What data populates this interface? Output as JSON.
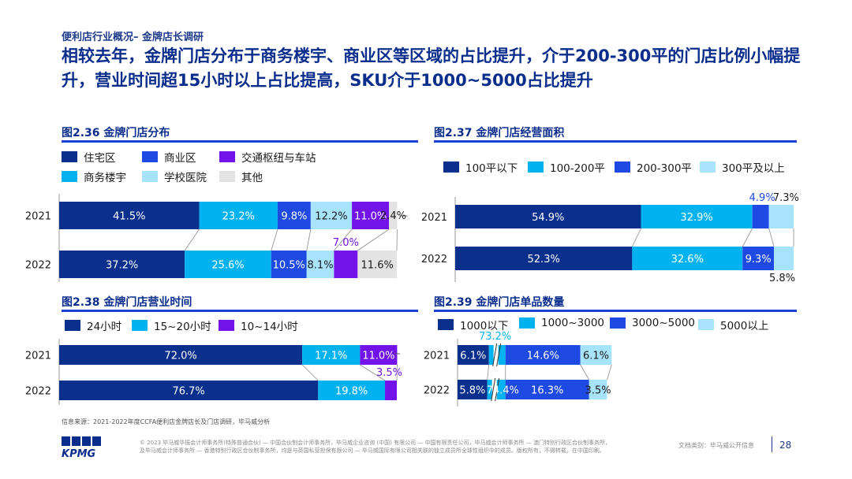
{
  "header": {
    "breadcrumb": "便利店行业概况– 金牌店长调研",
    "title": "相较去年，金牌门店分布于商务楼宇、商业区等区域的占比提升，介于200-300平的门店比例小幅提升，营业时间超15小时以上占比提高，SKU介于1000~5000占比提升"
  },
  "colors": {
    "navy": "#0a2f8c",
    "blue": "#1e49e2",
    "purple": "#7213ea",
    "cyan": "#00b3f0",
    "lightcyan": "#a7e3fa",
    "gray": "#e3e3e3"
  },
  "chart_data": [
    {
      "type": "bar",
      "stacked": true,
      "orientation": "horizontal",
      "title": "图2.36 金牌门店分布",
      "categories": [
        "2021",
        "2022"
      ],
      "series": [
        {
          "name": "住宅区",
          "values": [
            41.5,
            37.2
          ],
          "color": "#0a2f8c"
        },
        {
          "name": "商务楼宇",
          "values": [
            23.2,
            25.6
          ],
          "color": "#00b3f0"
        },
        {
          "name": "商业区",
          "values": [
            9.8,
            10.5
          ],
          "color": "#1e49e2"
        },
        {
          "name": "学校医院",
          "values": [
            12.2,
            8.1
          ],
          "color": "#a7e3fa"
        },
        {
          "name": "交通枢纽与车站",
          "values": [
            11.0,
            7.0
          ],
          "color": "#7213ea"
        },
        {
          "name": "其他",
          "values": [
            2.4,
            11.6
          ],
          "color": "#e3e3e3"
        }
      ],
      "labels": [
        [
          "41.5%",
          "23.2%",
          "9.8%",
          "12.2%",
          "11.0%",
          "2.4%"
        ],
        [
          "37.2%",
          "25.6%",
          "10.5%",
          "8.1%",
          "7.0%",
          "11.6%"
        ]
      ]
    },
    {
      "type": "bar",
      "stacked": true,
      "orientation": "horizontal",
      "title": "图2.37 金牌门店经营面积",
      "categories": [
        "2021",
        "2022"
      ],
      "series": [
        {
          "name": "100平以下",
          "values": [
            54.9,
            52.3
          ],
          "color": "#0a2f8c"
        },
        {
          "name": "100-200平",
          "values": [
            32.9,
            32.6
          ],
          "color": "#00b3f0"
        },
        {
          "name": "200-300平",
          "values": [
            4.9,
            9.3
          ],
          "color": "#1e49e2"
        },
        {
          "name": "300平及以上",
          "values": [
            7.3,
            5.8
          ],
          "color": "#a7e3fa"
        }
      ],
      "labels": [
        [
          "54.9%",
          "32.9%",
          "4.9%",
          "7.3%"
        ],
        [
          "52.3%",
          "32.6%",
          "9.3%",
          "5.8%"
        ]
      ]
    },
    {
      "type": "bar",
      "stacked": true,
      "orientation": "horizontal",
      "title": "图2.38 金牌门店营业时间",
      "categories": [
        "2021",
        "2022"
      ],
      "series": [
        {
          "name": "24小时",
          "values": [
            72.0,
            76.7
          ],
          "color": "#0a2f8c"
        },
        {
          "name": "15~20小时",
          "values": [
            17.1,
            19.8
          ],
          "color": "#00b3f0"
        },
        {
          "name": "10~14小时",
          "values": [
            11.0,
            3.5
          ],
          "color": "#7213ea"
        }
      ],
      "labels": [
        [
          "72.0%",
          "17.1%",
          "11.0%"
        ],
        [
          "76.7%",
          "19.8%",
          "3.5%"
        ]
      ]
    },
    {
      "type": "bar",
      "stacked": true,
      "orientation": "horizontal",
      "axis_break": true,
      "title": "图2.39 金牌门店单品数量",
      "categories": [
        "2021",
        "2022"
      ],
      "series": [
        {
          "name": "1000以下",
          "values": [
            6.1,
            5.8
          ],
          "color": "#0a2f8c"
        },
        {
          "name": "1000~3000",
          "values": [
            73.2,
            74.4
          ],
          "color": "#00b3f0"
        },
        {
          "name": "3000~5000",
          "values": [
            14.6,
            16.3
          ],
          "color": "#1e49e2"
        },
        {
          "name": "5000以上",
          "values": [
            6.1,
            3.5
          ],
          "color": "#a7e3fa"
        }
      ],
      "labels": [
        [
          "6.1%",
          "73.2%",
          "14.6%",
          "6.1%"
        ],
        [
          "5.8%",
          "74.4%",
          "16.3%",
          "3.5%"
        ]
      ]
    }
  ],
  "footer": {
    "source": "信息来源：2021-2022年度CCFA便利店金牌店长及门店调研，毕马威分析",
    "copyright": "© 2023 毕马威华振会计师事务所(特殊普通合伙) — 中国合伙制会计师事务所，毕马威企业咨询 (中国) 有限公司 — 中国有限责任公司，毕马威会计师事务所 — 澳门特别行政区合伙制事务所，及毕马威会计师事务所 — 香港特别行政区合伙制事务所，均是与英国私营担保有限公司 — 毕马威国际有限公司相关联的独立成员所全球性组织中的成员。版权所有，不得转载。在中国印刷。",
    "doc_type": "文档类别：毕马威公开信息",
    "page_number": "28",
    "logo_text": "KPMG"
  }
}
